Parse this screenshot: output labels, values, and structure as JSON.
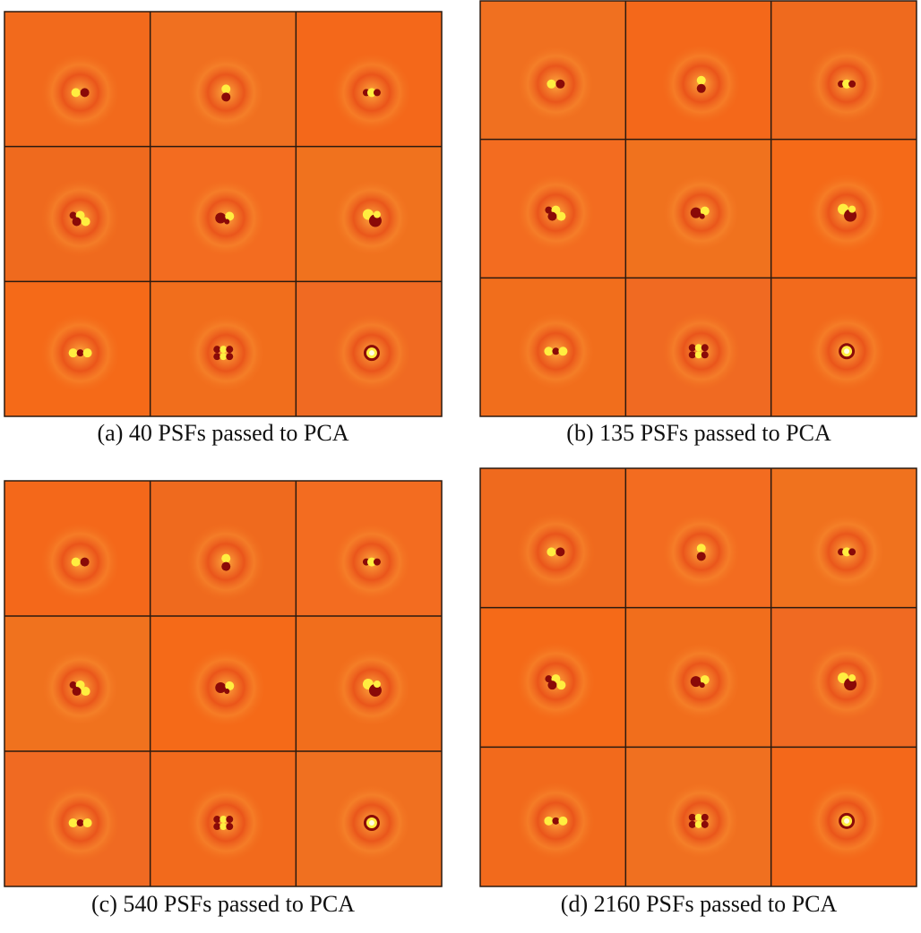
{
  "panels": [
    {
      "caption": "(a) 40 PSFs passed to PCA"
    },
    {
      "caption": "(b) 135 PSFs passed to PCA"
    },
    {
      "caption": "(c) 540 PSFs passed to PCA"
    },
    {
      "caption": "(d) 2160 PSFs passed to PCA"
    }
  ]
}
